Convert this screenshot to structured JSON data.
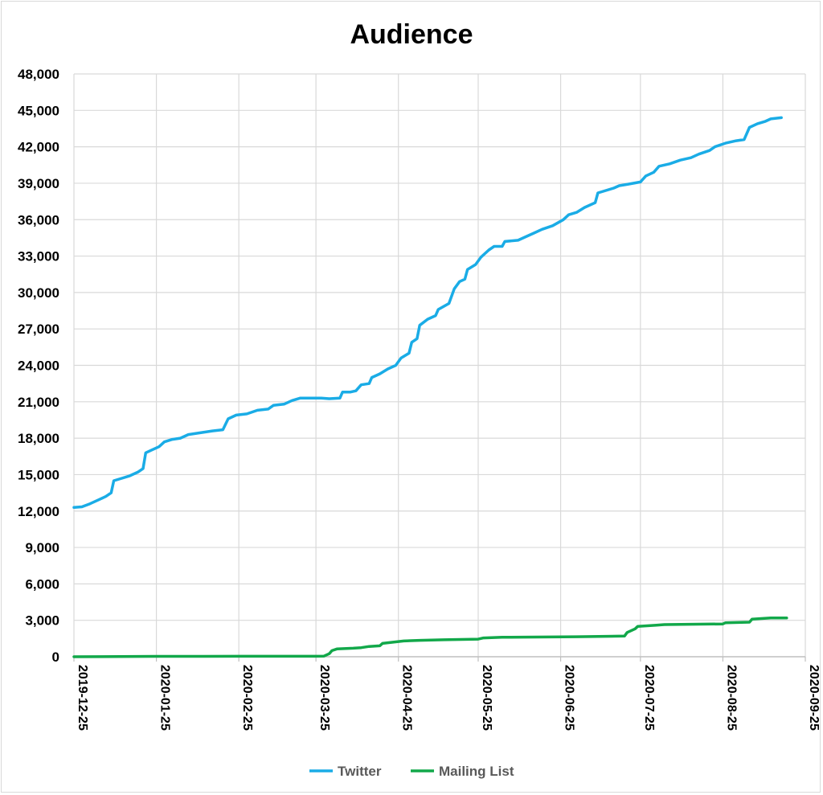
{
  "chart_data": {
    "type": "line",
    "title": "Audience",
    "xlabel": "",
    "ylabel": "",
    "x_ticks": [
      "2019-12-25",
      "2020-01-25",
      "2020-02-25",
      "2020-03-25",
      "2020-04-25",
      "2020-05-25",
      "2020-06-25",
      "2020-07-25",
      "2020-08-25",
      "2020-09-25"
    ],
    "y_ticks": [
      "0",
      "3,000",
      "6,000",
      "9,000",
      "12,000",
      "15,000",
      "18,000",
      "21,000",
      "24,000",
      "27,000",
      "30,000",
      "33,000",
      "36,000",
      "39,000",
      "42,000",
      "45,000",
      "48,000"
    ],
    "xlim": [
      "2019-12-25",
      "2020-09-25"
    ],
    "ylim": [
      0,
      48000
    ],
    "grid": "vertical and horizontal",
    "legend_position": "bottom",
    "series": [
      {
        "name": "Twitter",
        "color": "#1aace6",
        "points": [
          [
            "2019-12-25",
            12300
          ],
          [
            "2019-12-28",
            12350
          ],
          [
            "2019-12-31",
            12600
          ],
          [
            "2020-01-03",
            12900
          ],
          [
            "2020-01-06",
            13200
          ],
          [
            "2020-01-08",
            13500
          ],
          [
            "2020-01-09",
            14500
          ],
          [
            "2020-01-12",
            14700
          ],
          [
            "2020-01-15",
            14900
          ],
          [
            "2020-01-18",
            15200
          ],
          [
            "2020-01-20",
            15500
          ],
          [
            "2020-01-21",
            16800
          ],
          [
            "2020-01-23",
            17000
          ],
          [
            "2020-01-26",
            17300
          ],
          [
            "2020-01-28",
            17700
          ],
          [
            "2020-01-31",
            17900
          ],
          [
            "2020-02-03",
            18000
          ],
          [
            "2020-02-06",
            18300
          ],
          [
            "2020-02-09",
            18400
          ],
          [
            "2020-02-12",
            18500
          ],
          [
            "2020-02-15",
            18600
          ],
          [
            "2020-02-19",
            18700
          ],
          [
            "2020-02-21",
            19600
          ],
          [
            "2020-02-24",
            19900
          ],
          [
            "2020-02-28",
            20000
          ],
          [
            "2020-03-03",
            20300
          ],
          [
            "2020-03-07",
            20400
          ],
          [
            "2020-03-09",
            20700
          ],
          [
            "2020-03-13",
            20800
          ],
          [
            "2020-03-16",
            21100
          ],
          [
            "2020-03-19",
            21300
          ],
          [
            "2020-03-23",
            21300
          ],
          [
            "2020-03-27",
            21300
          ],
          [
            "2020-03-30",
            21250
          ],
          [
            "2020-04-03",
            21300
          ],
          [
            "2020-04-04",
            21800
          ],
          [
            "2020-04-07",
            21800
          ],
          [
            "2020-04-09",
            21900
          ],
          [
            "2020-04-11",
            22400
          ],
          [
            "2020-04-14",
            22500
          ],
          [
            "2020-04-15",
            23000
          ],
          [
            "2020-04-18",
            23300
          ],
          [
            "2020-04-21",
            23700
          ],
          [
            "2020-04-24",
            24000
          ],
          [
            "2020-04-26",
            24600
          ],
          [
            "2020-04-29",
            25000
          ],
          [
            "2020-04-30",
            25900
          ],
          [
            "2020-05-02",
            26200
          ],
          [
            "2020-05-03",
            27300
          ],
          [
            "2020-05-06",
            27800
          ],
          [
            "2020-05-09",
            28100
          ],
          [
            "2020-05-10",
            28600
          ],
          [
            "2020-05-14",
            29100
          ],
          [
            "2020-05-16",
            30300
          ],
          [
            "2020-05-18",
            30900
          ],
          [
            "2020-05-20",
            31100
          ],
          [
            "2020-05-21",
            31900
          ],
          [
            "2020-05-24",
            32300
          ],
          [
            "2020-05-26",
            32900
          ],
          [
            "2020-05-29",
            33500
          ],
          [
            "2020-05-31",
            33800
          ],
          [
            "2020-06-03",
            33800
          ],
          [
            "2020-06-04",
            34200
          ],
          [
            "2020-06-09",
            34300
          ],
          [
            "2020-06-12",
            34600
          ],
          [
            "2020-06-15",
            34900
          ],
          [
            "2020-06-18",
            35200
          ],
          [
            "2020-06-22",
            35500
          ],
          [
            "2020-06-26",
            36000
          ],
          [
            "2020-06-28",
            36400
          ],
          [
            "2020-07-01",
            36600
          ],
          [
            "2020-07-04",
            37000
          ],
          [
            "2020-07-08",
            37400
          ],
          [
            "2020-07-09",
            38200
          ],
          [
            "2020-07-12",
            38400
          ],
          [
            "2020-07-15",
            38600
          ],
          [
            "2020-07-17",
            38800
          ],
          [
            "2020-07-20",
            38900
          ],
          [
            "2020-07-25",
            39100
          ],
          [
            "2020-07-27",
            39600
          ],
          [
            "2020-07-30",
            39900
          ],
          [
            "2020-08-01",
            40400
          ],
          [
            "2020-08-05",
            40600
          ],
          [
            "2020-08-09",
            40900
          ],
          [
            "2020-08-13",
            41100
          ],
          [
            "2020-08-16",
            41400
          ],
          [
            "2020-08-20",
            41700
          ],
          [
            "2020-08-22",
            42000
          ],
          [
            "2020-08-26",
            42300
          ],
          [
            "2020-08-30",
            42500
          ],
          [
            "2020-09-02",
            42600
          ],
          [
            "2020-09-04",
            43600
          ],
          [
            "2020-09-07",
            43900
          ],
          [
            "2020-09-10",
            44100
          ],
          [
            "2020-09-12",
            44300
          ],
          [
            "2020-09-16",
            44400
          ]
        ]
      },
      {
        "name": "Mailing List",
        "color": "#12a84a",
        "points": [
          [
            "2019-12-25",
            0
          ],
          [
            "2020-01-25",
            30
          ],
          [
            "2020-02-25",
            40
          ],
          [
            "2020-03-25",
            40
          ],
          [
            "2020-03-28",
            50
          ],
          [
            "2020-03-30",
            250
          ],
          [
            "2020-03-31",
            500
          ],
          [
            "2020-04-02",
            650
          ],
          [
            "2020-04-08",
            700
          ],
          [
            "2020-04-11",
            750
          ],
          [
            "2020-04-14",
            850
          ],
          [
            "2020-04-18",
            900
          ],
          [
            "2020-04-19",
            1100
          ],
          [
            "2020-04-23",
            1200
          ],
          [
            "2020-04-27",
            1300
          ],
          [
            "2020-05-03",
            1350
          ],
          [
            "2020-05-12",
            1400
          ],
          [
            "2020-05-25",
            1450
          ],
          [
            "2020-05-27",
            1550
          ],
          [
            "2020-06-03",
            1600
          ],
          [
            "2020-07-01",
            1650
          ],
          [
            "2020-07-19",
            1700
          ],
          [
            "2020-07-20",
            2000
          ],
          [
            "2020-07-23",
            2300
          ],
          [
            "2020-07-24",
            2500
          ],
          [
            "2020-07-31",
            2600
          ],
          [
            "2020-08-03",
            2650
          ],
          [
            "2020-08-25",
            2700
          ],
          [
            "2020-08-26",
            2800
          ],
          [
            "2020-09-04",
            2850
          ],
          [
            "2020-09-05",
            3100
          ],
          [
            "2020-09-09",
            3150
          ],
          [
            "2020-09-12",
            3200
          ],
          [
            "2020-09-18",
            3200
          ]
        ]
      }
    ]
  }
}
